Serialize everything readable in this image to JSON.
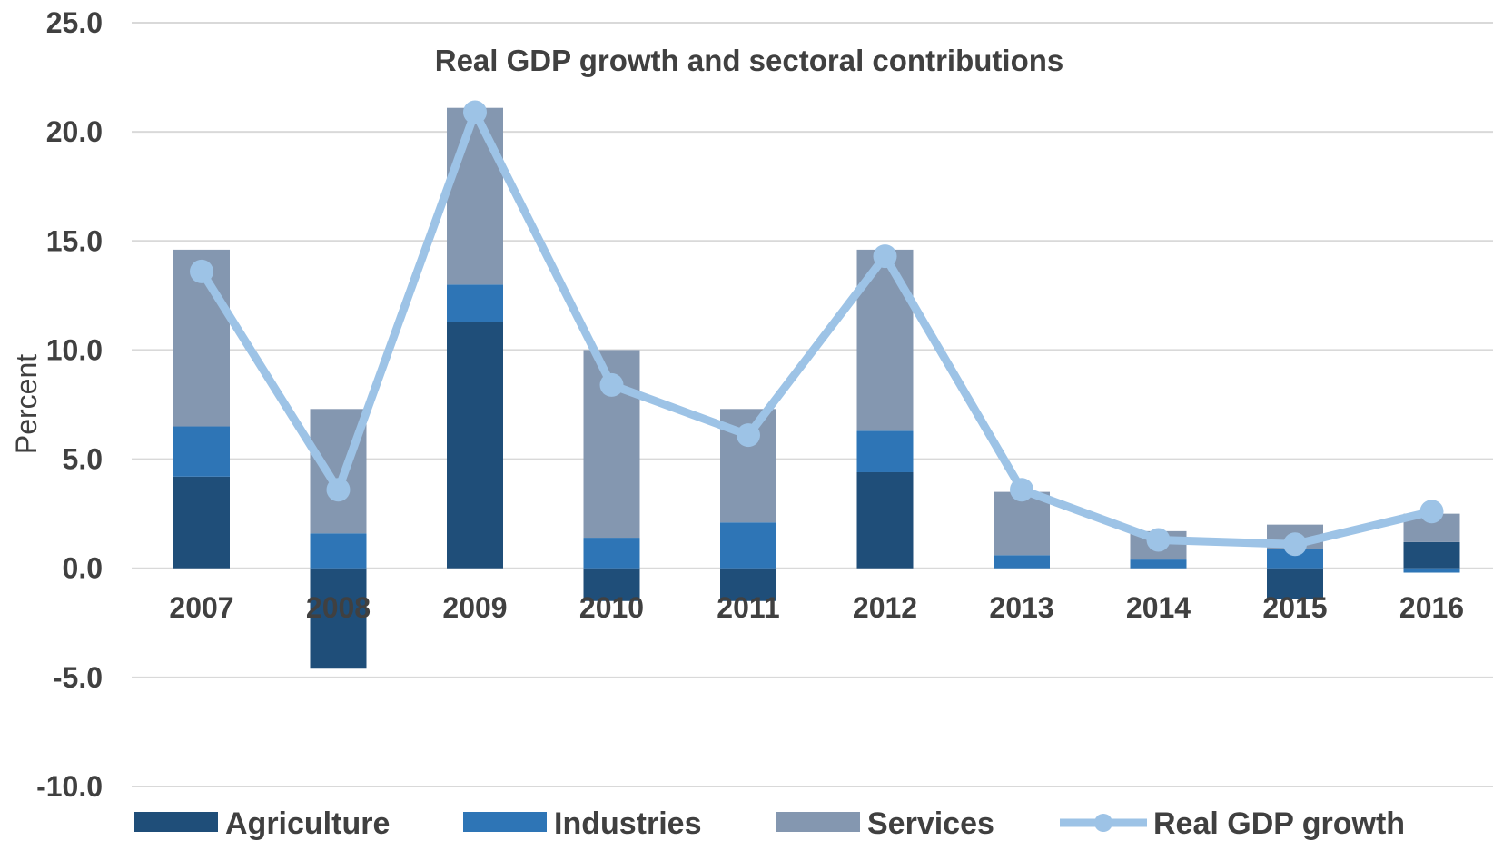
{
  "chart_data": {
    "type": "bar",
    "title": "Real GDP growth and sectoral contributions",
    "ylabel": "Percent",
    "xlabel": "",
    "ylim": [
      -10,
      25
    ],
    "yticks": [
      "25.0",
      "20.0",
      "15.0",
      "10.0",
      "5.0",
      "0.0",
      "-5.0",
      "-10.0"
    ],
    "ytick_values": [
      25,
      20,
      15,
      10,
      5,
      0,
      -5,
      -10
    ],
    "grid": true,
    "legend_position": "bottom",
    "categories": [
      "2007",
      "2008",
      "2009",
      "2010",
      "2011",
      "2012",
      "2013",
      "2014",
      "2015",
      "2016"
    ],
    "series": [
      {
        "name": "Agriculture",
        "kind": "bar",
        "color": "#1f4e79",
        "values": [
          4.2,
          -4.6,
          11.3,
          -1.5,
          -1.5,
          4.4,
          0.0,
          0.0,
          -1.4,
          1.2
        ]
      },
      {
        "name": "Industries",
        "kind": "bar",
        "color": "#2e75b6",
        "values": [
          2.3,
          1.6,
          1.7,
          1.4,
          2.1,
          1.9,
          0.6,
          0.4,
          0.9,
          -0.2
        ]
      },
      {
        "name": "Services",
        "kind": "bar",
        "color": "#8497b0",
        "values": [
          8.1,
          5.7,
          8.1,
          8.6,
          5.2,
          8.3,
          2.9,
          1.3,
          1.1,
          1.3
        ]
      },
      {
        "name": "Real GDP growth",
        "kind": "line",
        "color": "#9dc3e6",
        "values": [
          13.6,
          3.6,
          20.9,
          8.4,
          6.1,
          14.3,
          3.6,
          1.3,
          1.1,
          2.6
        ]
      }
    ]
  }
}
